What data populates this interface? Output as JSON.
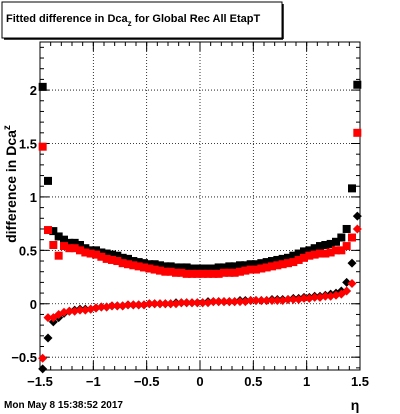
{
  "chart_data": {
    "type": "scatter",
    "title": "Fitted difference in Dca",
    "title_sub": "z",
    "title_suffix": " for Global Rec All EtapT",
    "ylabel": "difference in Dca",
    "ylabel_sub": "z",
    "xlabel": "η",
    "xlim": [
      -1.5,
      1.5
    ],
    "ylim": [
      -0.62,
      2.45
    ],
    "x_ticks": [
      -1.5,
      -1,
      -0.5,
      0,
      0.5,
      1,
      1.5
    ],
    "x_tick_labels": [
      "−1.5",
      "−1",
      "−0.5",
      "0",
      "0.5",
      "1",
      "1.5"
    ],
    "y_ticks": [
      -0.5,
      0,
      0.5,
      1,
      1.5,
      2
    ],
    "y_tick_labels": [
      "−0.5",
      "0",
      "0.5",
      "1",
      "1.5",
      "2"
    ],
    "grid": true,
    "series": [
      {
        "marker": "square",
        "color": "#000000",
        "x": [
          -1.475,
          -1.425,
          -1.375,
          -1.325,
          -1.275,
          -1.225,
          -1.175,
          -1.125,
          -1.075,
          -1.025,
          -0.975,
          -0.925,
          -0.875,
          -0.825,
          -0.775,
          -0.725,
          -0.675,
          -0.625,
          -0.575,
          -0.525,
          -0.475,
          -0.425,
          -0.375,
          -0.325,
          -0.275,
          -0.225,
          -0.175,
          -0.125,
          -0.075,
          -0.025,
          0.025,
          0.075,
          0.125,
          0.175,
          0.225,
          0.275,
          0.325,
          0.375,
          0.425,
          0.475,
          0.525,
          0.575,
          0.625,
          0.675,
          0.725,
          0.775,
          0.825,
          0.875,
          0.925,
          0.975,
          1.025,
          1.075,
          1.125,
          1.175,
          1.225,
          1.275,
          1.325,
          1.375,
          1.425,
          1.475
        ],
        "y": [
          2.03,
          1.15,
          0.68,
          0.63,
          0.6,
          0.57,
          0.57,
          0.55,
          0.52,
          0.5,
          0.5,
          0.48,
          0.47,
          0.46,
          0.45,
          0.43,
          0.42,
          0.4,
          0.39,
          0.38,
          0.37,
          0.37,
          0.36,
          0.35,
          0.35,
          0.34,
          0.34,
          0.34,
          0.33,
          0.33,
          0.33,
          0.33,
          0.33,
          0.34,
          0.34,
          0.35,
          0.35,
          0.36,
          0.36,
          0.37,
          0.37,
          0.38,
          0.39,
          0.4,
          0.41,
          0.42,
          0.43,
          0.45,
          0.47,
          0.49,
          0.5,
          0.52,
          0.54,
          0.55,
          0.56,
          0.58,
          0.62,
          0.7,
          1.08,
          2.05
        ]
      },
      {
        "marker": "square",
        "color": "#ff0000",
        "x": [
          -1.475,
          -1.425,
          -1.375,
          -1.325,
          -1.275,
          -1.225,
          -1.175,
          -1.125,
          -1.075,
          -1.025,
          -0.975,
          -0.925,
          -0.875,
          -0.825,
          -0.775,
          -0.725,
          -0.675,
          -0.625,
          -0.575,
          -0.525,
          -0.475,
          -0.425,
          -0.375,
          -0.325,
          -0.275,
          -0.225,
          -0.175,
          -0.125,
          -0.075,
          -0.025,
          0.025,
          0.075,
          0.125,
          0.175,
          0.225,
          0.275,
          0.325,
          0.375,
          0.425,
          0.475,
          0.525,
          0.575,
          0.625,
          0.675,
          0.725,
          0.775,
          0.825,
          0.875,
          0.925,
          0.975,
          1.025,
          1.075,
          1.125,
          1.175,
          1.225,
          1.275,
          1.325,
          1.375,
          1.425,
          1.475
        ],
        "y": [
          1.47,
          0.69,
          0.55,
          0.45,
          0.54,
          0.52,
          0.52,
          0.5,
          0.48,
          0.47,
          0.46,
          0.44,
          0.42,
          0.41,
          0.4,
          0.38,
          0.37,
          0.36,
          0.35,
          0.34,
          0.33,
          0.32,
          0.31,
          0.3,
          0.3,
          0.29,
          0.29,
          0.28,
          0.28,
          0.28,
          0.28,
          0.28,
          0.28,
          0.28,
          0.29,
          0.29,
          0.29,
          0.3,
          0.31,
          0.32,
          0.32,
          0.33,
          0.34,
          0.35,
          0.36,
          0.37,
          0.38,
          0.39,
          0.41,
          0.43,
          0.45,
          0.46,
          0.47,
          0.47,
          0.48,
          0.5,
          0.5,
          0.54,
          0.62,
          1.6
        ]
      },
      {
        "marker": "diamond",
        "color": "#000000",
        "x": [
          -1.475,
          -1.425,
          -1.375,
          -1.325,
          -1.275,
          -1.225,
          -1.175,
          -1.125,
          -1.075,
          -1.025,
          -0.975,
          -0.925,
          -0.875,
          -0.825,
          -0.775,
          -0.725,
          -0.675,
          -0.625,
          -0.575,
          -0.525,
          -0.475,
          -0.425,
          -0.375,
          -0.325,
          -0.275,
          -0.225,
          -0.175,
          -0.125,
          -0.075,
          -0.025,
          0.025,
          0.075,
          0.125,
          0.175,
          0.225,
          0.275,
          0.325,
          0.375,
          0.425,
          0.475,
          0.525,
          0.575,
          0.625,
          0.675,
          0.725,
          0.775,
          0.825,
          0.875,
          0.925,
          0.975,
          1.025,
          1.075,
          1.125,
          1.175,
          1.225,
          1.275,
          1.325,
          1.375,
          1.425,
          1.475
        ],
        "y": [
          -0.61,
          -0.32,
          -0.17,
          -0.13,
          -0.09,
          -0.07,
          -0.06,
          -0.05,
          -0.05,
          -0.05,
          -0.04,
          -0.03,
          -0.03,
          -0.02,
          -0.02,
          -0.02,
          -0.01,
          -0.01,
          -0.01,
          -0.01,
          0.0,
          0.0,
          0.0,
          0.0,
          0.0,
          0.01,
          0.01,
          0.01,
          0.01,
          0.01,
          0.01,
          0.02,
          0.02,
          0.02,
          0.02,
          0.02,
          0.02,
          0.03,
          0.03,
          0.03,
          0.03,
          0.03,
          0.03,
          0.04,
          0.04,
          0.04,
          0.04,
          0.05,
          0.05,
          0.06,
          0.06,
          0.07,
          0.07,
          0.08,
          0.09,
          0.1,
          0.12,
          0.2,
          0.38,
          0.82
        ]
      },
      {
        "marker": "diamond",
        "color": "#ff0000",
        "x": [
          -1.475,
          -1.425,
          -1.375,
          -1.325,
          -1.275,
          -1.225,
          -1.175,
          -1.125,
          -1.075,
          -1.025,
          -0.975,
          -0.925,
          -0.875,
          -0.825,
          -0.775,
          -0.725,
          -0.675,
          -0.625,
          -0.575,
          -0.525,
          -0.475,
          -0.425,
          -0.375,
          -0.325,
          -0.275,
          -0.225,
          -0.175,
          -0.125,
          -0.075,
          -0.025,
          0.025,
          0.075,
          0.125,
          0.175,
          0.225,
          0.275,
          0.325,
          0.375,
          0.425,
          0.475,
          0.525,
          0.575,
          0.625,
          0.675,
          0.725,
          0.775,
          0.825,
          0.875,
          0.925,
          0.975,
          1.025,
          1.075,
          1.125,
          1.175,
          1.225,
          1.275,
          1.325,
          1.375,
          1.425,
          1.475
        ],
        "y": [
          -0.51,
          -0.13,
          -0.13,
          -0.1,
          -0.08,
          -0.07,
          -0.07,
          -0.06,
          -0.06,
          -0.05,
          -0.04,
          -0.03,
          -0.03,
          -0.02,
          -0.02,
          -0.02,
          -0.01,
          -0.01,
          -0.01,
          -0.01,
          0.0,
          0.0,
          0.0,
          0.0,
          0.0,
          0.0,
          0.01,
          0.01,
          0.01,
          0.01,
          0.01,
          0.01,
          0.02,
          0.02,
          0.02,
          0.02,
          0.02,
          0.02,
          0.02,
          0.03,
          0.03,
          0.03,
          0.03,
          0.03,
          0.03,
          0.03,
          0.04,
          0.04,
          0.04,
          0.05,
          0.05,
          0.06,
          0.06,
          0.07,
          0.07,
          0.08,
          0.09,
          0.12,
          0.19,
          0.7
        ]
      }
    ]
  },
  "timestamp": "Mon May  8 15:38:52 2017"
}
